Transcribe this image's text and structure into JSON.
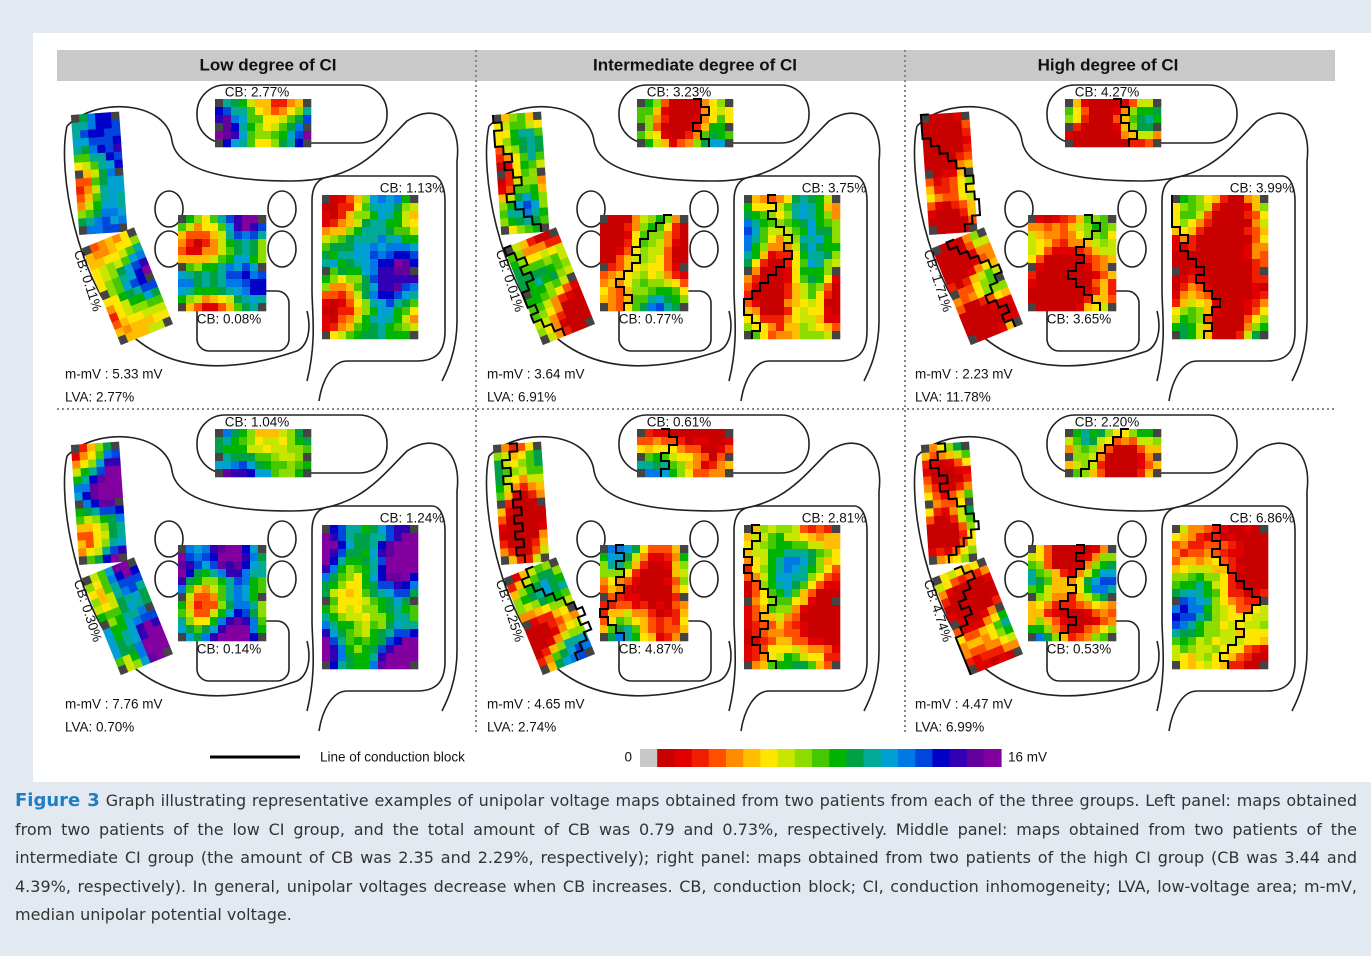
{
  "column_headers": [
    "Low degree of CI",
    "Intermediate degree of CI",
    "High degree of CI"
  ],
  "panels": [
    {
      "cb_top": "CB: 2.77%",
      "cb_right": "CB: 1.13%",
      "cb_left": "CB: 0.11%",
      "cb_center": "CB: 0.08%",
      "mmv": "m-mV : 5.33 mV",
      "lva": "LVA: 2.77%"
    },
    {
      "cb_top": "CB: 3.23%",
      "cb_right": "CB: 3.75%",
      "cb_left": "CB: 0.01%",
      "cb_center": "CB: 0.77%",
      "mmv": "m-mV : 3.64 mV",
      "lva": "LVA: 6.91%"
    },
    {
      "cb_top": "CB: 4.27%",
      "cb_right": "CB: 3.99%",
      "cb_left": "CB: 1.71%",
      "cb_center": "CB: 3.65%",
      "mmv": "m-mV : 2.23 mV",
      "lva": "LVA: 11.78%"
    },
    {
      "cb_top": "CB: 1.04%",
      "cb_right": "CB: 1.24%",
      "cb_left": "CB: 0.30%",
      "cb_center": "CB: 0.14%",
      "mmv": "m-mV : 7.76 mV",
      "lva": "LVA: 0.70%"
    },
    {
      "cb_top": "CB: 0.61%",
      "cb_right": "CB: 2.81%",
      "cb_left": "CB: 0.25%",
      "cb_center": "CB: 4.87%",
      "mmv": "m-mV : 4.65 mV",
      "lva": "LVA: 2.74%"
    },
    {
      "cb_top": "CB: 2.20%",
      "cb_right": "CB: 6.86%",
      "cb_left": "CB: 4.74%",
      "cb_center": "CB: 0.53%",
      "mmv": "m-mV : 4.47 mV",
      "lva": "LVA: 6.99%"
    }
  ],
  "legend": {
    "line_label": "Line of conduction block",
    "scale_min": "0",
    "scale_max": "16 mV"
  },
  "caption": {
    "label": "Figure 3",
    "text": "Graph illustrating representative examples of unipolar voltage maps obtained from two patients from each of the three groups. Left panel: maps obtained from two patients of the low CI group, and the total amount of CB was 0.79 and 0.73%, respectively. Middle panel: maps obtained from two patients of the intermediate CI group (the amount of CB was 2.35 and 2.29%, respectively); right panel: maps obtained from two patients of the high CI group (CB was 3.44 and 4.39%, respectively). In general, unipolar voltages decrease when CB increases. CB, conduction block; CI, conduction inhomogeneity; LVA, low-voltage area; m-mV, median unipolar potential voltage."
  }
}
